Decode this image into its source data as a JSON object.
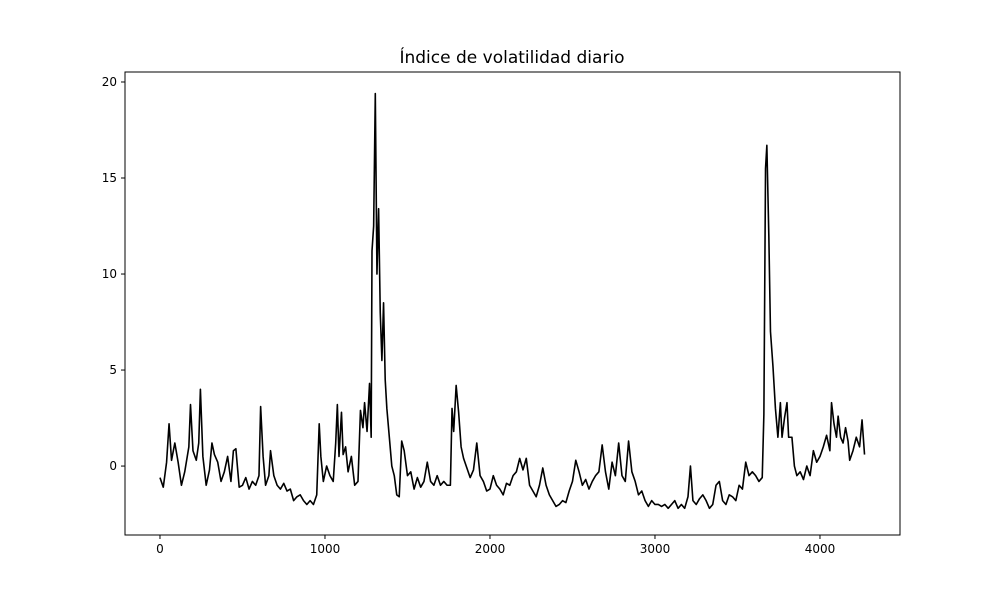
{
  "chart_data": {
    "type": "line",
    "title": "Índice de volatilidad diario",
    "color": "#000000",
    "x": [
      0,
      20,
      40,
      55,
      70,
      90,
      110,
      130,
      150,
      175,
      185,
      200,
      220,
      235,
      245,
      260,
      280,
      300,
      315,
      330,
      350,
      370,
      390,
      410,
      430,
      445,
      460,
      480,
      500,
      520,
      540,
      560,
      580,
      600,
      610,
      625,
      640,
      660,
      670,
      690,
      710,
      730,
      750,
      770,
      790,
      810,
      830,
      850,
      870,
      890,
      910,
      930,
      950,
      965,
      975,
      990,
      1010,
      1030,
      1050,
      1065,
      1075,
      1085,
      1100,
      1110,
      1125,
      1140,
      1160,
      1180,
      1200,
      1215,
      1230,
      1240,
      1255,
      1270,
      1280,
      1285,
      1295,
      1305,
      1315,
      1325,
      1335,
      1345,
      1355,
      1365,
      1375,
      1390,
      1405,
      1420,
      1435,
      1450,
      1465,
      1480,
      1500,
      1520,
      1540,
      1560,
      1580,
      1600,
      1620,
      1640,
      1660,
      1680,
      1700,
      1720,
      1740,
      1760,
      1770,
      1780,
      1795,
      1810,
      1825,
      1840,
      1860,
      1880,
      1900,
      1920,
      1940,
      1960,
      1980,
      2000,
      2020,
      2040,
      2060,
      2080,
      2100,
      2120,
      2140,
      2160,
      2180,
      2200,
      2220,
      2240,
      2260,
      2280,
      2300,
      2320,
      2340,
      2360,
      2380,
      2400,
      2420,
      2440,
      2460,
      2480,
      2500,
      2520,
      2540,
      2560,
      2580,
      2600,
      2620,
      2640,
      2660,
      2680,
      2700,
      2720,
      2740,
      2760,
      2780,
      2800,
      2820,
      2840,
      2860,
      2880,
      2900,
      2920,
      2940,
      2960,
      2980,
      3000,
      3020,
      3040,
      3060,
      3080,
      3100,
      3120,
      3140,
      3160,
      3180,
      3200,
      3215,
      3230,
      3250,
      3270,
      3290,
      3310,
      3330,
      3350,
      3370,
      3390,
      3410,
      3430,
      3450,
      3470,
      3490,
      3510,
      3530,
      3550,
      3570,
      3590,
      3610,
      3630,
      3650,
      3660,
      3670,
      3678,
      3690,
      3700,
      3715,
      3730,
      3745,
      3760,
      3770,
      3785,
      3800,
      3810,
      3830,
      3845,
      3860,
      3880,
      3900,
      3920,
      3940,
      3960,
      3980,
      4000,
      4020,
      4040,
      4060,
      4070,
      4085,
      4100,
      4110,
      4125,
      4140,
      4155,
      4170,
      4180,
      4200,
      4220,
      4240,
      4255,
      4270
    ],
    "values": [
      -0.6,
      -1.1,
      0.2,
      2.2,
      0.3,
      1.2,
      0.2,
      -1.0,
      -0.3,
      1.0,
      3.2,
      0.8,
      0.3,
      1.2,
      4.0,
      0.5,
      -1.0,
      -0.2,
      1.2,
      0.6,
      0.2,
      -0.8,
      -0.3,
      0.5,
      -0.8,
      0.8,
      0.9,
      -1.1,
      -1.0,
      -0.6,
      -1.2,
      -0.8,
      -1.0,
      -0.5,
      3.1,
      0.5,
      -1.0,
      -0.5,
      0.8,
      -0.5,
      -1.0,
      -1.2,
      -0.9,
      -1.3,
      -1.2,
      -1.8,
      -1.6,
      -1.5,
      -1.8,
      -2.0,
      -1.8,
      -2.0,
      -1.5,
      2.2,
      0.5,
      -0.8,
      0.0,
      -0.5,
      -0.8,
      1.2,
      3.2,
      0.5,
      2.8,
      0.6,
      1.0,
      -0.3,
      0.5,
      -1.0,
      -0.8,
      2.9,
      2.0,
      3.3,
      1.8,
      4.3,
      1.5,
      11.2,
      12.5,
      19.4,
      10.0,
      13.4,
      8.0,
      5.5,
      8.5,
      4.5,
      3.0,
      1.5,
      0.0,
      -0.5,
      -1.5,
      -1.6,
      1.3,
      0.8,
      -0.5,
      -0.3,
      -1.2,
      -0.6,
      -1.1,
      -0.8,
      0.2,
      -0.8,
      -1.0,
      -0.5,
      -1.0,
      -0.8,
      -1.0,
      -1.0,
      3.0,
      1.8,
      4.2,
      2.8,
      1.0,
      0.4,
      -0.1,
      -0.6,
      -0.2,
      1.2,
      -0.5,
      -0.8,
      -1.3,
      -1.2,
      -0.5,
      -1.0,
      -1.2,
      -1.5,
      -0.9,
      -1.0,
      -0.5,
      -0.3,
      0.4,
      -0.2,
      0.4,
      -1.0,
      -1.3,
      -1.6,
      -1.0,
      -0.1,
      -1.0,
      -1.5,
      -1.8,
      -2.1,
      -2.0,
      -1.8,
      -1.9,
      -1.3,
      -0.8,
      0.3,
      -0.3,
      -1.0,
      -0.7,
      -1.2,
      -0.8,
      -0.5,
      -0.3,
      1.1,
      -0.3,
      -1.2,
      0.2,
      -0.5,
      1.2,
      -0.5,
      -0.8,
      1.3,
      -0.3,
      -0.8,
      -1.5,
      -1.3,
      -1.8,
      -2.1,
      -1.8,
      -2.0,
      -2.0,
      -2.1,
      -2.0,
      -2.2,
      -2.0,
      -1.8,
      -2.2,
      -2.0,
      -2.2,
      -1.6,
      0.0,
      -1.8,
      -2.0,
      -1.7,
      -1.5,
      -1.8,
      -2.2,
      -2.0,
      -1.0,
      -0.8,
      -1.8,
      -2.0,
      -1.5,
      -1.6,
      -1.8,
      -1.0,
      -1.2,
      0.2,
      -0.5,
      -0.3,
      -0.5,
      -0.8,
      -0.6,
      2.7,
      15.5,
      16.7,
      12.0,
      7.0,
      5.2,
      3.0,
      1.5,
      3.3,
      1.5,
      2.5,
      3.3,
      1.5,
      1.5,
      0.0,
      -0.5,
      -0.3,
      -0.7,
      0.0,
      -0.5,
      0.8,
      0.2,
      0.5,
      1.0,
      1.6,
      0.8,
      3.3,
      2.2,
      1.5,
      2.6,
      1.5,
      1.2,
      2.0,
      1.3,
      0.3,
      0.8,
      1.5,
      1.0,
      2.4,
      0.6
    ],
    "xlim": [
      -212,
      4485
    ],
    "ylim": [
      -3.59,
      20.52
    ],
    "xticks": [
      0,
      1000,
      2000,
      3000,
      4000
    ],
    "yticks": [
      0,
      5,
      10,
      15,
      20
    ],
    "grid": false
  }
}
